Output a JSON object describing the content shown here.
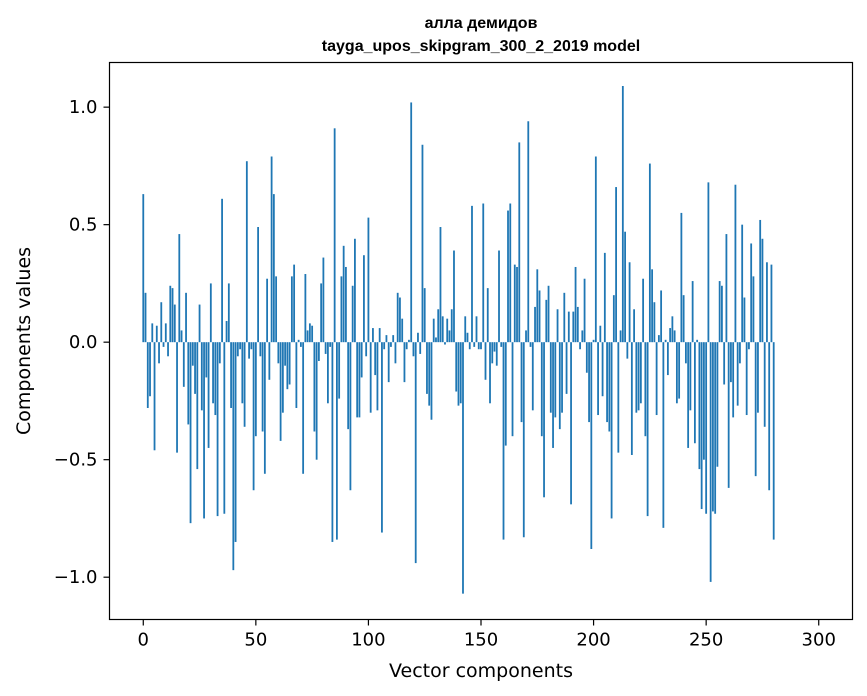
{
  "chart_data": {
    "type": "bar",
    "title": "алла демидов",
    "subtitle": "tayga_upos_skipgram_300_2_2019 model",
    "xlabel": "Vector components",
    "ylabel": "Components values",
    "xlim": [
      -15,
      315
    ],
    "ylim": [
      -1.18,
      1.19
    ],
    "xticks": [
      0,
      50,
      100,
      150,
      200,
      250,
      300
    ],
    "xtick_labels": [
      "0",
      "50",
      "100",
      "150",
      "200",
      "250",
      "300"
    ],
    "yticks": [
      -1.0,
      -0.5,
      0.0,
      0.5,
      1.0
    ],
    "ytick_labels": [
      "−1.0",
      "−0.5",
      "0.0",
      "0.5",
      "1.0"
    ],
    "grid": false,
    "bar_color": "#1f77b4",
    "values": [
      0.63,
      0.21,
      -0.28,
      -0.23,
      0.08,
      -0.46,
      0.07,
      -0.09,
      0.17,
      -0.02,
      0.08,
      -0.06,
      0.24,
      0.23,
      0.16,
      -0.47,
      0.46,
      0.05,
      -0.19,
      0.21,
      -0.35,
      -0.77,
      -0.1,
      -0.22,
      -0.54,
      0.16,
      -0.29,
      -0.75,
      -0.15,
      -0.45,
      0.25,
      -0.26,
      -0.31,
      -0.74,
      -0.09,
      0.61,
      -0.73,
      0.09,
      0.25,
      -0.28,
      -0.97,
      -0.85,
      -0.06,
      -0.03,
      -0.26,
      -0.36,
      0.77,
      -0.07,
      -0.03,
      -0.63,
      -0.4,
      0.49,
      -0.06,
      -0.38,
      -0.56,
      0.27,
      -0.16,
      0.79,
      0.63,
      0.28,
      -0.09,
      -0.42,
      -0.3,
      -0.1,
      -0.2,
      -0.18,
      0.28,
      0.33,
      -0.28,
      0.01,
      -0.02,
      -0.56,
      0.29,
      0.05,
      0.08,
      0.07,
      -0.38,
      -0.5,
      -0.08,
      0.25,
      0.36,
      -0.05,
      -0.26,
      -0.02,
      -0.85,
      0.91,
      -0.84,
      -0.24,
      0.28,
      0.41,
      0.32,
      -0.37,
      -0.63,
      0.24,
      0.44,
      -0.32,
      -0.32,
      -0.15,
      0.37,
      -0.06,
      0.53,
      -0.3,
      0.06,
      -0.14,
      -0.29,
      0.06,
      -0.81,
      -0.03,
      0.03,
      -0.17,
      -0.02,
      0.03,
      -0.09,
      0.21,
      0.19,
      0.1,
      -0.17,
      -0.03,
      0.01,
      1.02,
      -0.06,
      -0.94,
      0.04,
      -0.05,
      0.84,
      0.23,
      -0.22,
      -0.27,
      -0.33,
      0.1,
      0.02,
      0.14,
      0.49,
      0.11,
      -0.01,
      0.1,
      0.05,
      0.14,
      0.39,
      -0.21,
      -0.27,
      -0.26,
      -1.07,
      0.11,
      0.04,
      -0.03,
      0.58,
      -0.02,
      0.11,
      -0.03,
      -0.03,
      0.59,
      -0.16,
      0.23,
      -0.26,
      -0.09,
      -0.04,
      -0.1,
      0.39,
      -0.02,
      -0.84,
      -0.44,
      0.56,
      0.59,
      -0.4,
      0.33,
      0.32,
      0.85,
      -0.34,
      -0.83,
      0.05,
      0.94,
      -0.02,
      -0.29,
      0.15,
      0.31,
      0.22,
      -0.4,
      -0.66,
      0.18,
      0.24,
      -0.3,
      -0.45,
      -0.32,
      0.14,
      -0.37,
      -0.3,
      0.21,
      -0.22,
      0.13,
      -0.69,
      0.13,
      0.32,
      0.15,
      -0.03,
      0.05,
      0.27,
      -0.13,
      -0.34,
      -0.88,
      0.01,
      0.79,
      -0.31,
      0.07,
      -0.23,
      0.38,
      -0.34,
      -0.38,
      -0.75,
      0.2,
      0.66,
      -0.47,
      0.05,
      1.09,
      0.47,
      -0.07,
      0.34,
      -0.48,
      0.14,
      -0.3,
      -0.29,
      -0.26,
      0.27,
      -0.4,
      -0.74,
      0.76,
      0.31,
      0.17,
      -0.31,
      0.03,
      0.22,
      -0.79,
      0.01,
      -0.14,
      0.06,
      0.11,
      0.05,
      -0.26,
      -0.24,
      0.55,
      0.2,
      -0.09,
      -0.45,
      -0.29,
      0.26,
      -0.43,
      0.01,
      -0.54,
      -0.71,
      -0.5,
      -0.73,
      0.68,
      -1.02,
      -0.72,
      -0.73,
      -0.53,
      0.26,
      0.24,
      -0.18,
      0.46,
      -0.62,
      -0.17,
      -0.32,
      0.67,
      -0.27,
      -0.09,
      0.5,
      0.19,
      -0.31,
      -0.03,
      0.42,
      0.28,
      -0.57,
      -0.3,
      0.52,
      0.44,
      -0.36,
      0.34,
      -0.63,
      0.33,
      -0.84
    ]
  }
}
